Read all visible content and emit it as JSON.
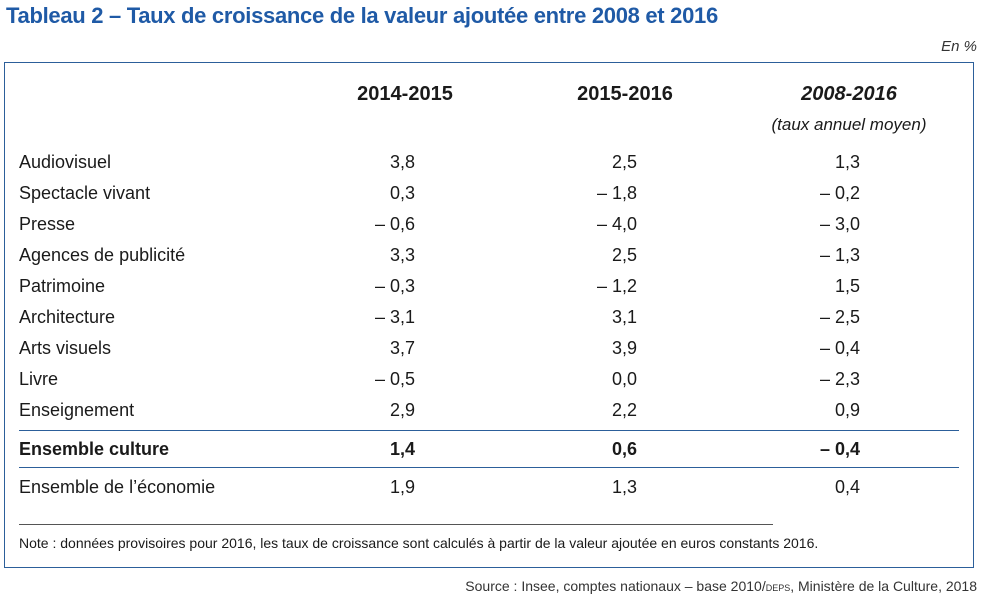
{
  "title": "Tableau 2 – Taux de croissance de la valeur ajoutée entre 2008 et 2016",
  "unit": "En %",
  "columns": [
    "2014-2015",
    "2015-2016",
    "2008-2016"
  ],
  "column_sub": "(taux annuel moyen)",
  "rows": [
    {
      "label": "Audiovisuel",
      "v": [
        "3,8",
        "2,5",
        "1,3"
      ]
    },
    {
      "label": "Spectacle vivant",
      "v": [
        "0,3",
        "– 1,8",
        "– 0,2"
      ]
    },
    {
      "label": "Presse",
      "v": [
        "– 0,6",
        "– 4,0",
        "– 3,0"
      ]
    },
    {
      "label": "Agences de publicité",
      "v": [
        "3,3",
        "2,5",
        "– 1,3"
      ]
    },
    {
      "label": "Patrimoine",
      "v": [
        "– 0,3",
        "– 1,2",
        "1,5"
      ]
    },
    {
      "label": "Architecture",
      "v": [
        "– 3,1",
        "3,1",
        "– 2,5"
      ]
    },
    {
      "label": "Arts visuels",
      "v": [
        "3,7",
        "3,9",
        "– 0,4"
      ]
    },
    {
      "label": "Livre",
      "v": [
        "– 0,5",
        "0,0",
        "– 2,3"
      ]
    },
    {
      "label": "Enseignement",
      "v": [
        "2,9",
        "2,2",
        "0,9"
      ]
    }
  ],
  "total_culture": {
    "label": "Ensemble culture",
    "v": [
      "1,4",
      "0,6",
      "– 0,4"
    ]
  },
  "total_economy": {
    "label": "Ensemble de l’économie",
    "v": [
      "1,9",
      "1,3",
      "0,4"
    ]
  },
  "note": "Note : données provisoires pour 2016, les taux de croissance sont calculés à partir de la valeur ajoutée en euros constants 2016.",
  "source_pre": "Source : Insee, comptes nationaux – base 2010/",
  "source_deps": "deps",
  "source_post": ", Ministère de la Culture, 2018",
  "colors": {
    "title": "#1f5aa6",
    "border": "#2c5f9a"
  }
}
